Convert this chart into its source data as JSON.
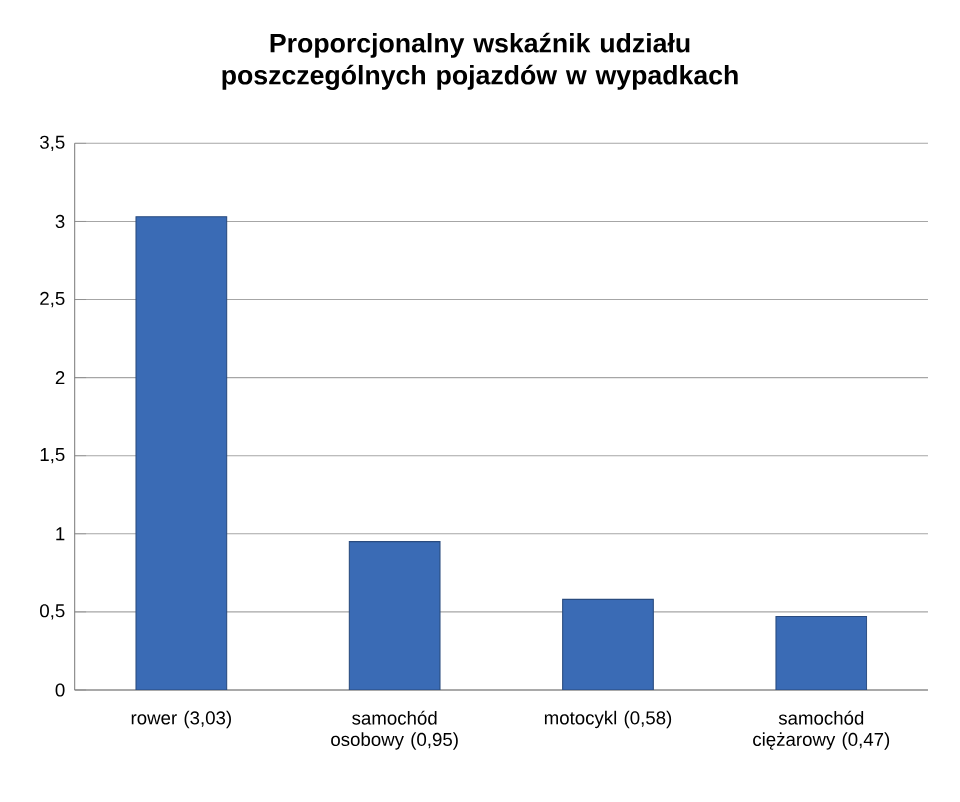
{
  "chart_data": {
    "type": "bar",
    "title": "Proporcjonalny wskaźnik udziału poszczególnych pojazdów w wypadkach",
    "categories": [
      "rower (3,03)",
      "samochód osobowy (0,95)",
      "motocykl (0,58)",
      "samochód ciężarowy (0,47)"
    ],
    "values": [
      3.03,
      0.95,
      0.58,
      0.47
    ],
    "color": "#3a6bb5",
    "ylim": [
      0,
      3.5
    ],
    "yticks": [
      0,
      {
        "value": 0.5,
        "label": "0,5"
      },
      1,
      {
        "value": 1.5,
        "label": "1,5"
      },
      2,
      {
        "value": 2.5,
        "label": "2,5"
      },
      3,
      {
        "value": 3.5,
        "label": "3,5"
      }
    ],
    "grid": "y"
  }
}
